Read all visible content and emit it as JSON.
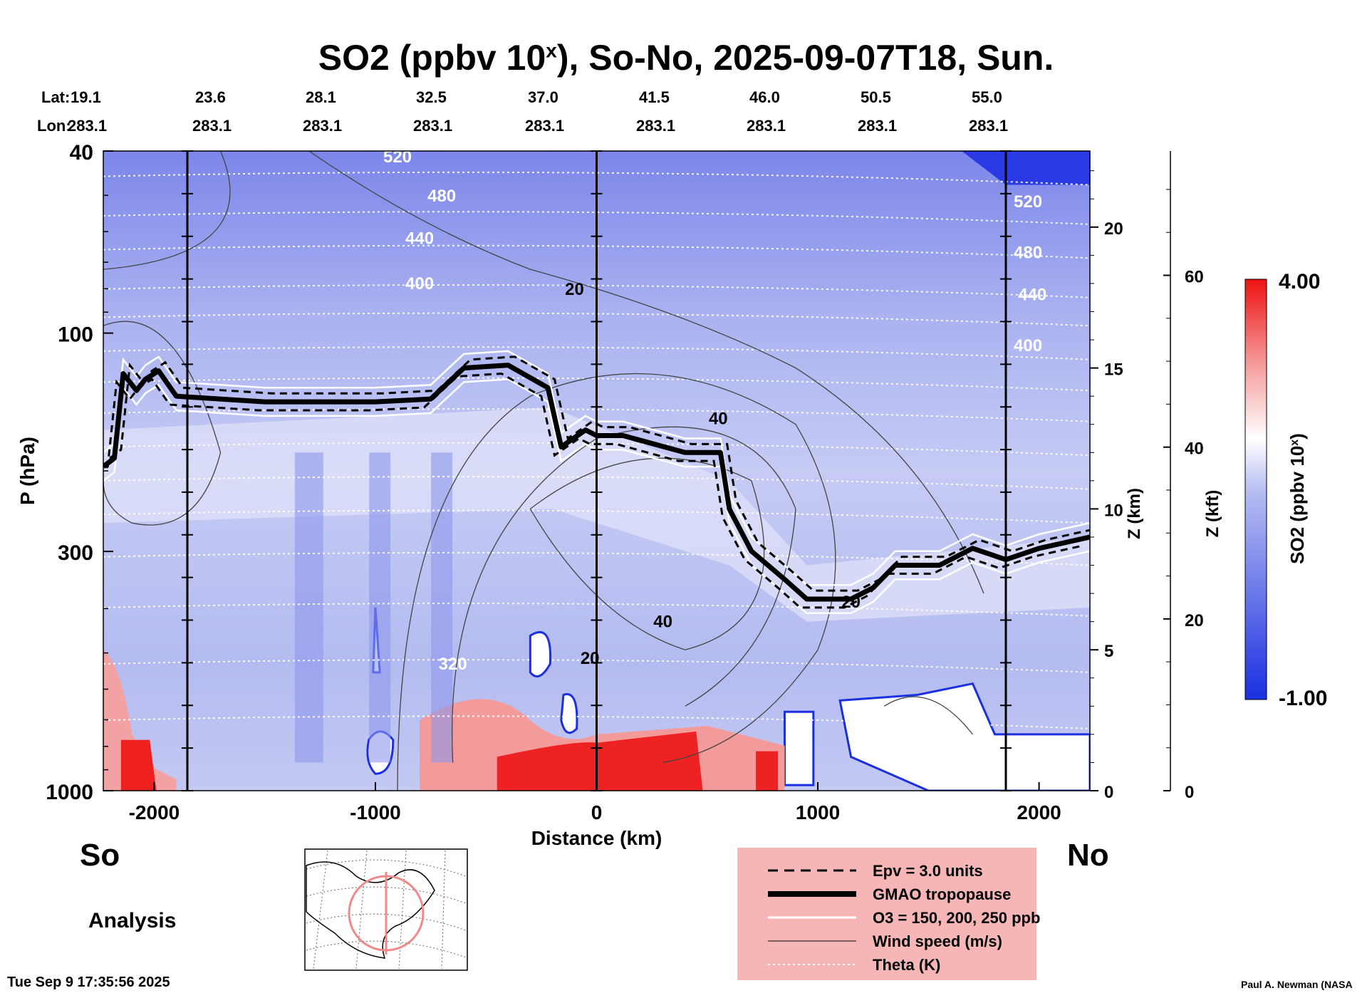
{
  "title": "SO2 (ppbv 10",
  "title_sup": "x",
  "title_rest": "), So-No, 2025-09-07T18, Sun.",
  "lat_label": "Lat:",
  "lon_label": "Lon:",
  "lats": [
    "19.1",
    "23.6",
    "28.1",
    "32.5",
    "37.0",
    "41.5",
    "46.0",
    "50.5",
    "55.0"
  ],
  "lons": [
    "283.1",
    "283.1",
    "283.1",
    "283.1",
    "283.1",
    "283.1",
    "283.1",
    "283.1",
    "283.1"
  ],
  "left_end": "So",
  "right_end": "No",
  "analysis": "Analysis",
  "timestamp": "Tue Sep  9 17:35:56 2025",
  "credit": "Paul A. Newman (NASA",
  "colors": {
    "colorbar_low": "#1a2fe0",
    "colorbar_mid": "#ffffff",
    "colorbar_high": "#ee1111",
    "legend_bg": "#f7b6b6",
    "background_fill": "#aab3ee"
  },
  "chart_data": {
    "type": "heatmap",
    "title": "SO2 (ppbv 10^x), So-No, 2025-09-07T18, Sun.",
    "xlabel": "Distance (km)",
    "ylabel": "P (hPa)",
    "y2label": "Z (km)",
    "y3label": "Z (kft)",
    "xlim": [
      -2230,
      2230
    ],
    "ylim": [
      1000,
      40
    ],
    "y_scale": "log",
    "x_ticks": [
      "-2000",
      "-1000",
      "0",
      "1000",
      "2000"
    ],
    "y_ticks": [
      "40",
      "100",
      "300",
      "1000"
    ],
    "z_km_ticks": [
      "0",
      "5",
      "10",
      "15",
      "20"
    ],
    "z_kft_ticks": [
      "0",
      "20",
      "40",
      "60"
    ],
    "colorbar": {
      "label": "SO2 (ppbv 10",
      "label_sup": "x",
      "label_end": ")",
      "min": "-1.00",
      "max": "4.00"
    },
    "theta_labels": [
      "520",
      "480",
      "440",
      "400",
      "520",
      "480",
      "440",
      "400",
      "320"
    ],
    "wind_labels": [
      "20",
      "40",
      "40",
      "20",
      "20"
    ],
    "tropopause_km": [
      [
        -2230,
        11.5
      ],
      [
        -2180,
        11.8
      ],
      [
        -2140,
        14.8
      ],
      [
        -2080,
        14.2
      ],
      [
        -2040,
        14.6
      ],
      [
        -1980,
        14.9
      ],
      [
        -1900,
        14.0
      ],
      [
        -1500,
        13.8
      ],
      [
        -1000,
        13.8
      ],
      [
        -750,
        13.9
      ],
      [
        -600,
        15.0
      ],
      [
        -400,
        15.1
      ],
      [
        -220,
        14.3
      ],
      [
        -160,
        12.2
      ],
      [
        -50,
        12.8
      ],
      [
        0,
        12.6
      ],
      [
        120,
        12.6
      ],
      [
        400,
        12.0
      ],
      [
        560,
        12.0
      ],
      [
        600,
        10.0
      ],
      [
        700,
        8.5
      ],
      [
        850,
        7.5
      ],
      [
        950,
        6.8
      ],
      [
        1150,
        6.8
      ],
      [
        1250,
        7.2
      ],
      [
        1350,
        8.0
      ],
      [
        1550,
        8.0
      ],
      [
        1700,
        8.6
      ],
      [
        1850,
        8.2
      ],
      [
        2000,
        8.6
      ],
      [
        2230,
        9.0
      ]
    ],
    "legend": [
      {
        "style": "dashed",
        "text": "Epv = 3.0 units"
      },
      {
        "style": "thick",
        "text": "GMAO tropopause"
      },
      {
        "style": "white",
        "text": "O3 = 150, 200, 250 ppb"
      },
      {
        "style": "thin",
        "text": "Wind speed (m/s)"
      },
      {
        "style": "dotted",
        "text": "Theta (K)"
      }
    ]
  }
}
